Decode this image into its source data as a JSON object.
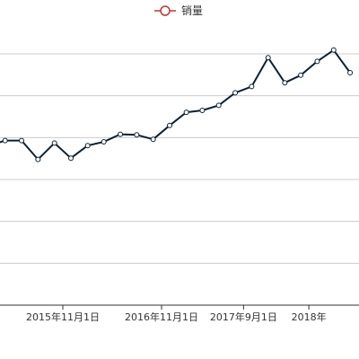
{
  "chart_data": {
    "type": "line",
    "ylim": [
      0,
      4000
    ],
    "grid": true,
    "legend_position": "top-center",
    "colors": {
      "line": "#0b2135",
      "marker_fill": "#ffffff",
      "legend_accent": "#c23531",
      "grid": "#cccccc",
      "tick_text": "#333333"
    },
    "x_ticks": [
      {
        "date": "2015-11-01",
        "label": "2015年11月1日"
      },
      {
        "date": "2016-11-01",
        "label": "2016年11月1日"
      },
      {
        "date": "2017-09-01",
        "label": "2017年9月1日"
      },
      {
        "date": "2018-05-01",
        "label": "2018年"
      }
    ],
    "series": [
      {
        "name": "销量",
        "points": [
          {
            "x": "2015-02-01",
            "y": 2540
          },
          {
            "x": "2015-04-01",
            "y": 2620
          },
          {
            "x": "2015-06-01",
            "y": 2620
          },
          {
            "x": "2015-08-01",
            "y": 2320
          },
          {
            "x": "2015-10-01",
            "y": 2580
          },
          {
            "x": "2015-12-01",
            "y": 2340
          },
          {
            "x": "2016-02-01",
            "y": 2540
          },
          {
            "x": "2016-04-01",
            "y": 2600
          },
          {
            "x": "2016-06-01",
            "y": 2720
          },
          {
            "x": "2016-08-01",
            "y": 2710
          },
          {
            "x": "2016-10-01",
            "y": 2640
          },
          {
            "x": "2016-12-01",
            "y": 2860
          },
          {
            "x": "2017-02-01",
            "y": 3070
          },
          {
            "x": "2017-04-01",
            "y": 3100
          },
          {
            "x": "2017-06-01",
            "y": 3180
          },
          {
            "x": "2017-08-01",
            "y": 3380
          },
          {
            "x": "2017-10-01",
            "y": 3480
          },
          {
            "x": "2017-12-01",
            "y": 3940
          },
          {
            "x": "2018-02-01",
            "y": 3540
          },
          {
            "x": "2018-04-01",
            "y": 3660
          },
          {
            "x": "2018-06-01",
            "y": 3880
          },
          {
            "x": "2018-08-01",
            "y": 4060
          },
          {
            "x": "2018-10-01",
            "y": 3700
          }
        ]
      }
    ]
  }
}
